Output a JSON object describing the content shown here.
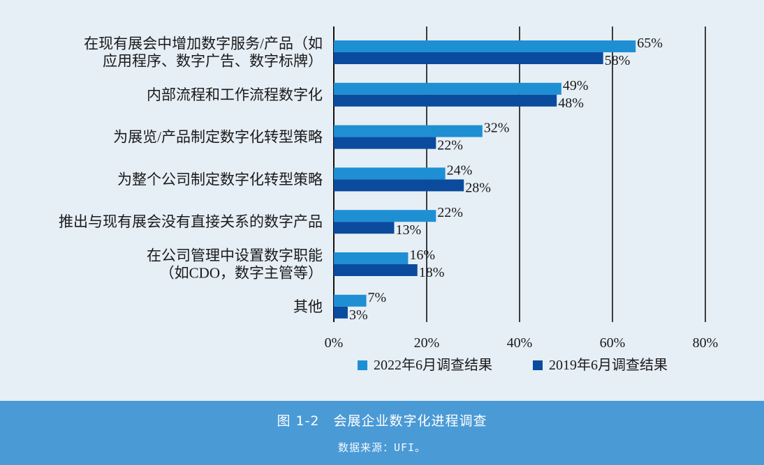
{
  "caption": {
    "title": "图 1-2　会展企业数字化进程调查",
    "source": "数据来源：UFI。"
  },
  "colors": {
    "series_2022": "#1e8fd3",
    "series_2019": "#0b4b9e",
    "background": "#e6eef6",
    "caption_bar": "#4a9ad6"
  },
  "chart_data": {
    "type": "bar",
    "orientation": "horizontal",
    "categories": [
      [
        "在现有展会中增加数字服务/产品（如",
        "应用程序、数字广告、数字标牌）"
      ],
      [
        "内部流程和工作流程数字化"
      ],
      [
        "为展览/产品制定数字化转型策略"
      ],
      [
        "为整个公司制定数字化转型策略"
      ],
      [
        "推出与现有展会没有直接关系的数字产品"
      ],
      [
        "在公司管理中设置数字职能",
        "（如CDO，数字主管等）"
      ],
      [
        "其他"
      ]
    ],
    "series": [
      {
        "name": "2022年6月调查结果",
        "values": [
          65,
          49,
          32,
          24,
          22,
          16,
          7
        ]
      },
      {
        "name": "2019年6月调查结果",
        "values": [
          58,
          48,
          22,
          28,
          13,
          18,
          3
        ]
      }
    ],
    "value_suffix": "%",
    "xlim": [
      0,
      80
    ],
    "xticks": [
      0,
      20,
      40,
      60,
      80
    ],
    "xtick_labels": [
      "0%",
      "20%",
      "40%",
      "60%",
      "80%"
    ],
    "grid": "vertical",
    "legend_position": "bottom"
  }
}
